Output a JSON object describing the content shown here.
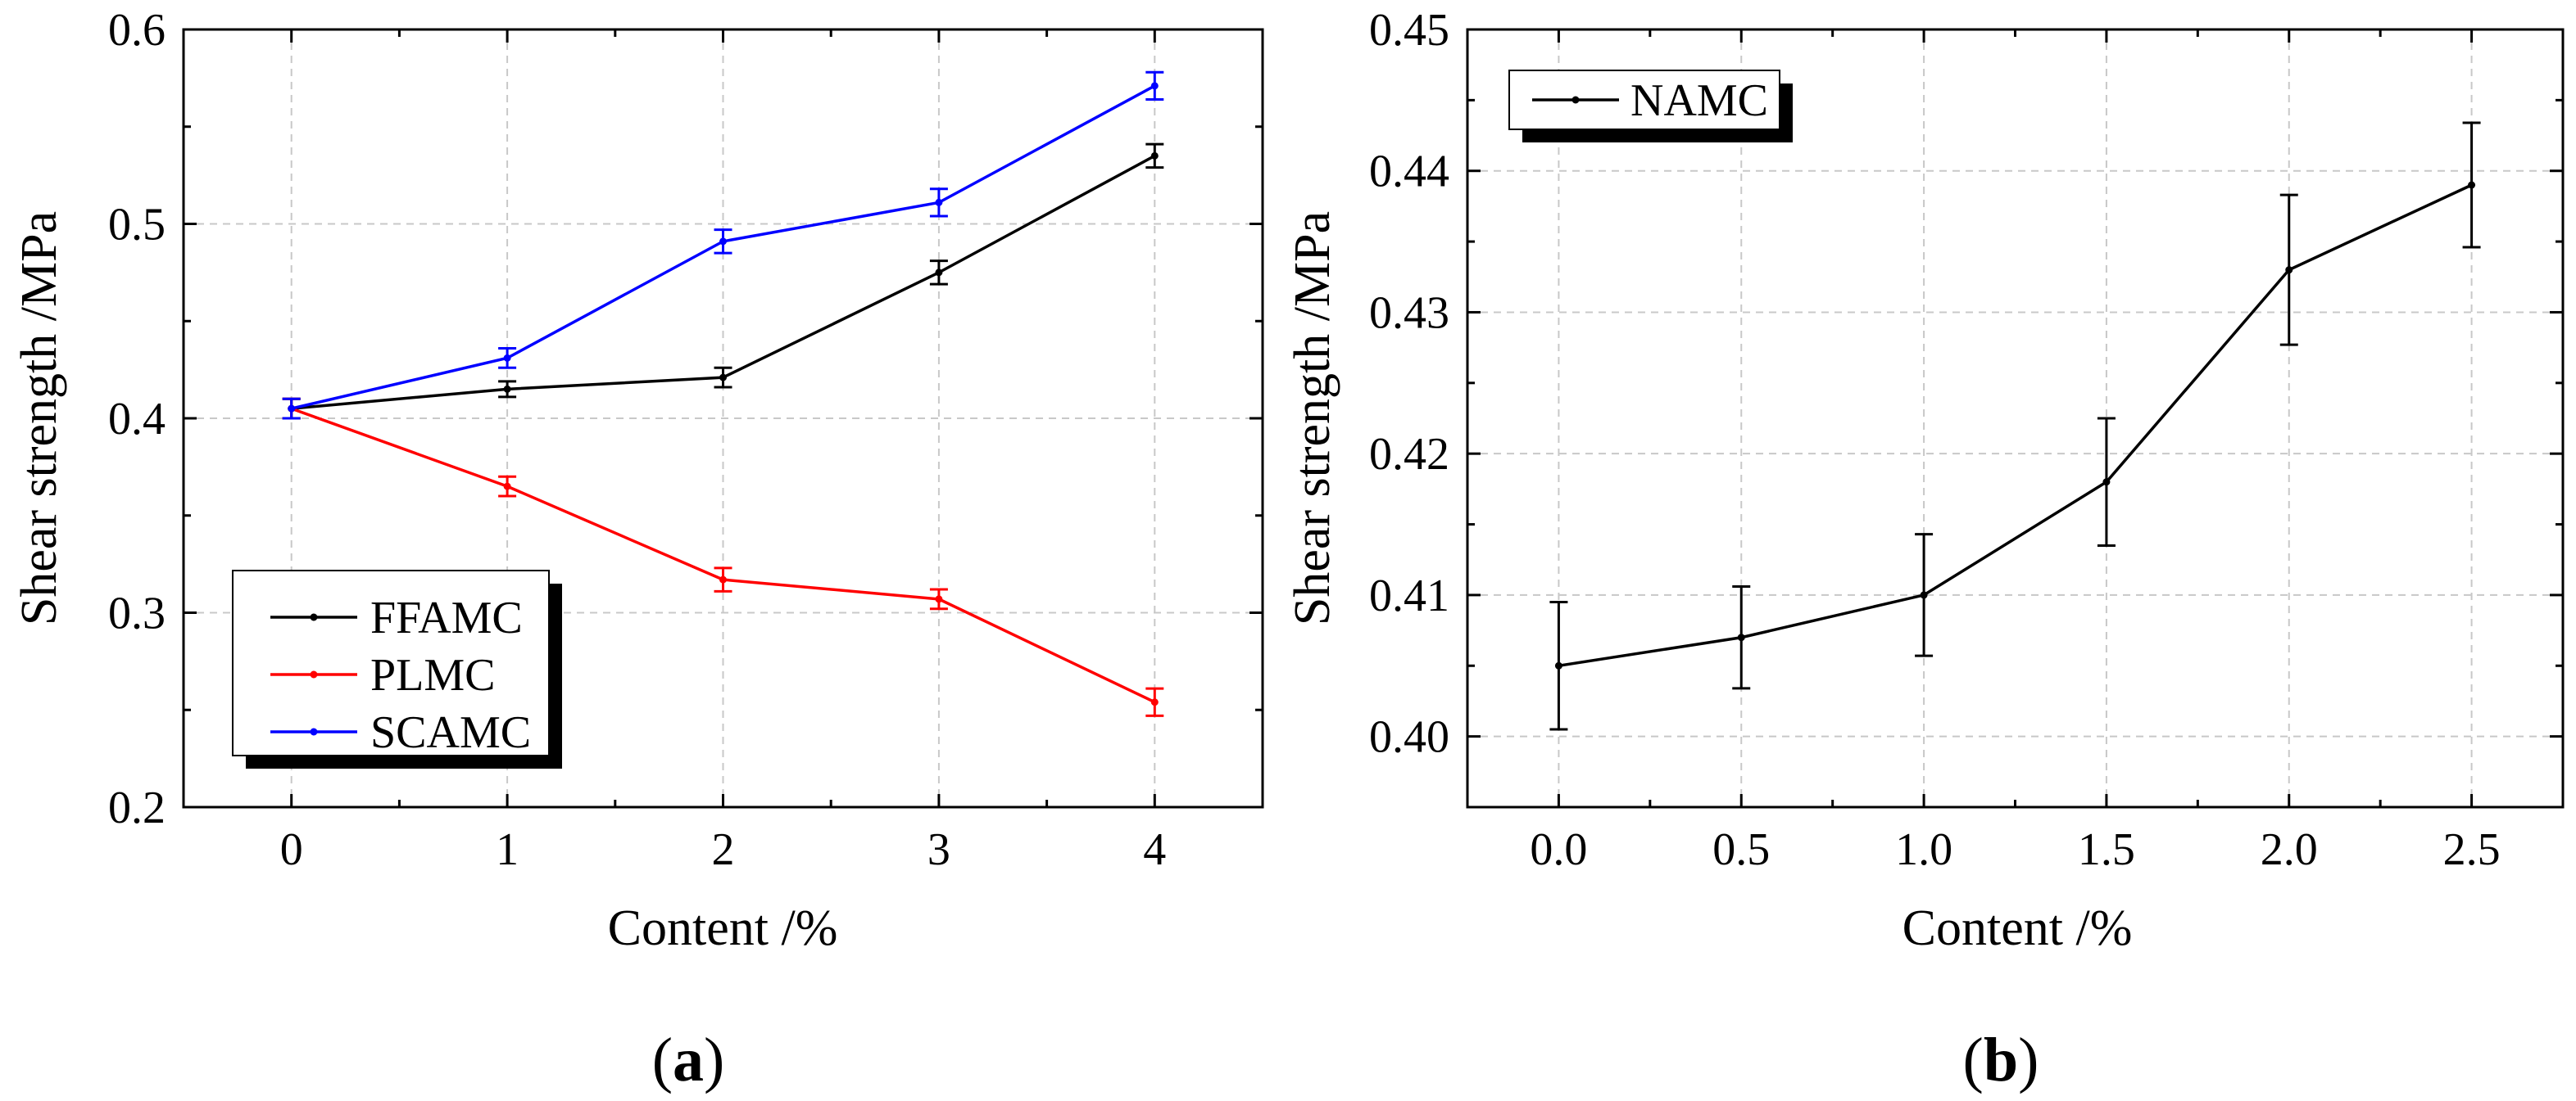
{
  "chart_data": [
    {
      "type": "line",
      "panel": "a",
      "caption_letter": "a",
      "xlabel": "Content /%",
      "ylabel": "Shear strength /MPa",
      "x": [
        0,
        1,
        2,
        3,
        4
      ],
      "xlim": [
        -0.5,
        4.5
      ],
      "ylim": [
        0.2,
        0.6
      ],
      "xticks": [
        "0",
        "1",
        "2",
        "3",
        "4"
      ],
      "yticks": [
        "0.2",
        "0.3",
        "0.4",
        "0.5",
        "0.6"
      ],
      "grid": true,
      "legend_position": "bottom-left",
      "series": [
        {
          "name": "FFAMC",
          "color": "#000000",
          "values": [
            0.405,
            0.415,
            0.421,
            0.475,
            0.535
          ],
          "errors": [
            0.005,
            0.004,
            0.005,
            0.006,
            0.006
          ]
        },
        {
          "name": "PLMC",
          "color": "#ff0000",
          "values": [
            0.405,
            0.365,
            0.317,
            0.307,
            0.254
          ],
          "errors": [
            0.005,
            0.005,
            0.006,
            0.005,
            0.007
          ]
        },
        {
          "name": "SCAMC",
          "color": "#0000ff",
          "values": [
            0.405,
            0.431,
            0.491,
            0.511,
            0.571
          ],
          "errors": [
            0.005,
            0.005,
            0.006,
            0.007,
            0.007
          ]
        }
      ]
    },
    {
      "type": "line",
      "panel": "b",
      "caption_letter": "b",
      "xlabel": "Content /%",
      "ylabel": "Shear strength /MPa",
      "x": [
        0.0,
        0.5,
        1.0,
        1.5,
        2.0,
        2.5
      ],
      "xlim": [
        -0.25,
        2.75
      ],
      "ylim": [
        0.395,
        0.45
      ],
      "xticks": [
        "0.0",
        "0.5",
        "1.0",
        "1.5",
        "2.0",
        "2.5"
      ],
      "yticks": [
        "0.40",
        "0.41",
        "0.42",
        "0.43",
        "0.44",
        "0.45"
      ],
      "grid": true,
      "legend_position": "top-left",
      "series": [
        {
          "name": "NAMC",
          "color": "#000000",
          "values": [
            0.405,
            0.407,
            0.41,
            0.418,
            0.433,
            0.439
          ],
          "errors": [
            0.0045,
            0.0036,
            0.0043,
            0.0045,
            0.0053,
            0.0044
          ]
        }
      ]
    }
  ]
}
